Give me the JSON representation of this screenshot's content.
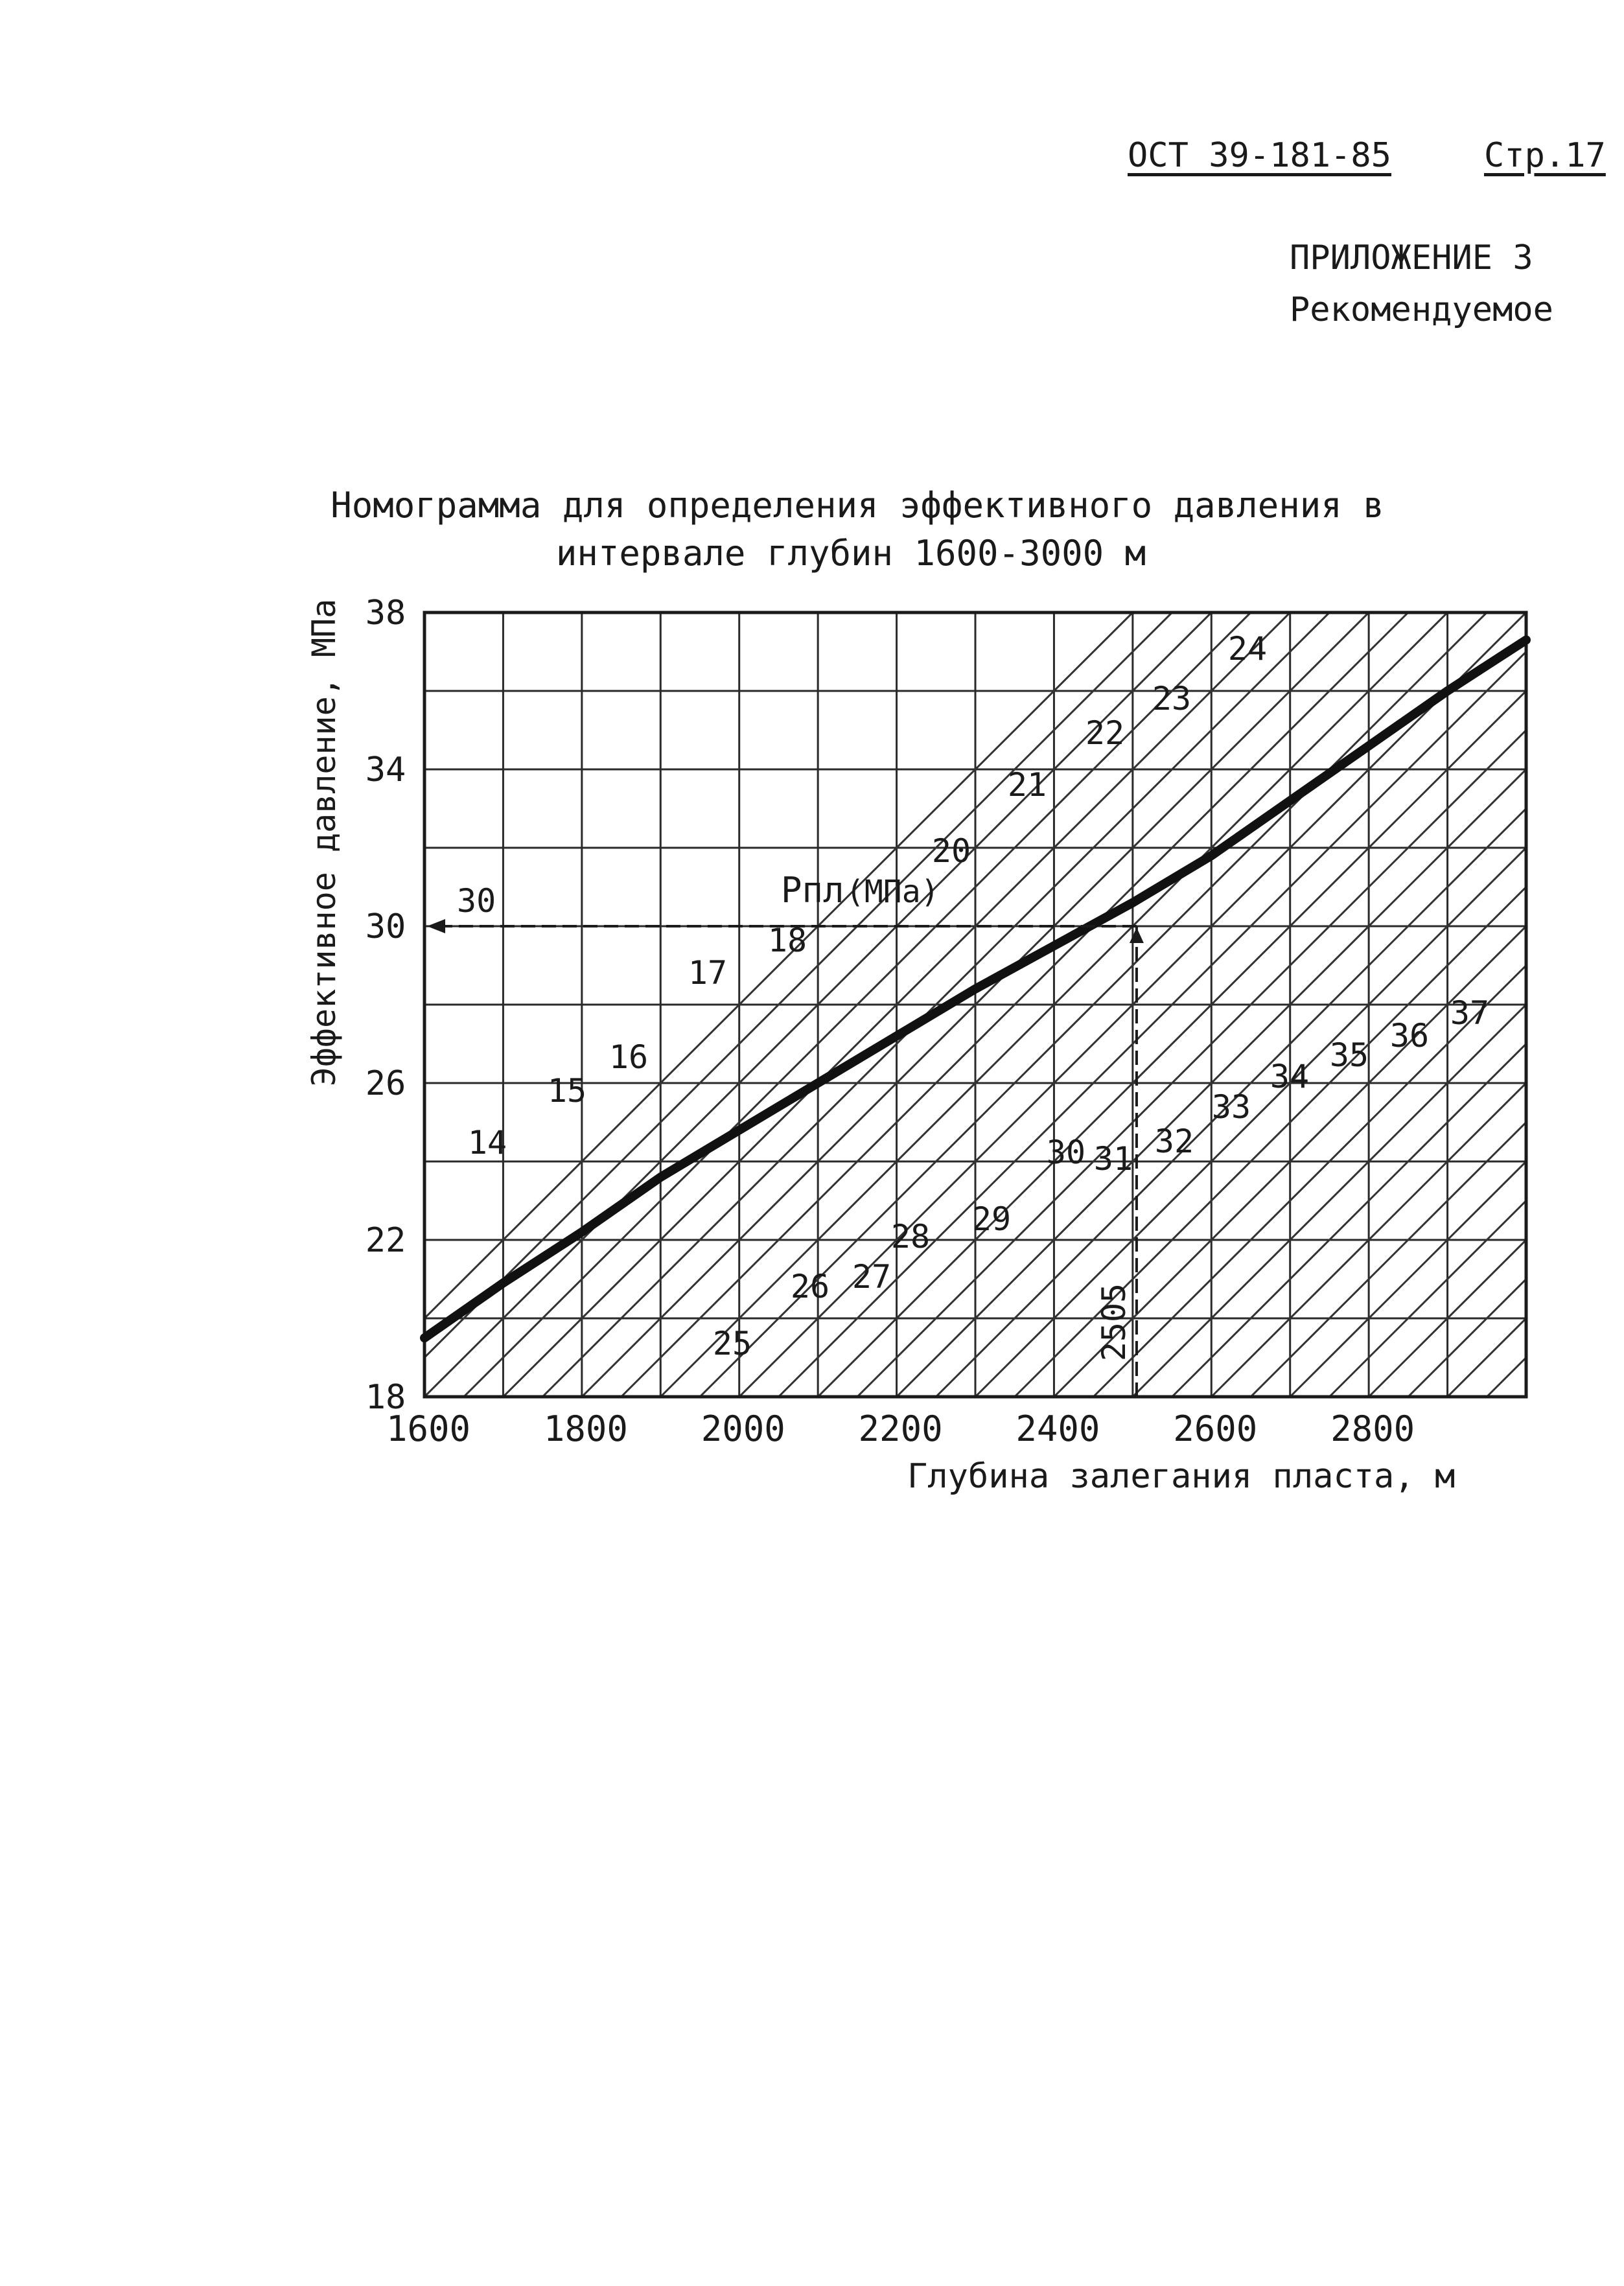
{
  "header": {
    "doc_code": "ОСТ 39-181-85",
    "page": "Стр.17",
    "appendix": "ПРИЛОЖЕНИЕ 3",
    "recommended": "Рекомендуемое"
  },
  "chart_data": {
    "type": "line",
    "title": "Номограмма для определения эффективного давления в интервале глубин 1600-3000 м",
    "title_line1": "Номограмма для определения эффективного давления в",
    "title_line2": "интервале глубин 1600-3000 м",
    "xlabel": "Глубина залегания пласта, м",
    "ylabel": "Эффективное давление, МПа",
    "xlim": [
      1600,
      3000
    ],
    "ylim": [
      18,
      38
    ],
    "x_ticks": [
      1600,
      1800,
      2000,
      2200,
      2400,
      2600,
      2800
    ],
    "x_tick_labels": [
      "1600",
      "1800",
      "2000",
      "2200",
      "2400",
      "2600",
      "2800"
    ],
    "y_ticks": [
      18,
      22,
      26,
      30,
      34,
      38
    ],
    "y_tick_labels": [
      "18",
      "22",
      "26",
      "30",
      "34",
      "38"
    ],
    "grid": true,
    "series": [
      {
        "name": "Pпл (МПа)",
        "x": [
          1600,
          1700,
          1800,
          1900,
          2000,
          2100,
          2200,
          2300,
          2400,
          2500,
          2600,
          2700,
          2800,
          2900,
          3000
        ],
        "y": [
          19.5,
          20.9,
          22.2,
          23.6,
          24.8,
          26.0,
          27.2,
          28.4,
          29.5,
          30.6,
          31.8,
          33.2,
          34.6,
          36.0,
          37.3
        ]
      }
    ],
    "isolines": {
      "values": [
        14,
        15,
        16,
        17,
        18,
        20,
        21,
        22,
        23,
        24,
        25,
        26,
        27,
        28,
        29,
        30,
        31,
        32,
        33,
        34,
        35,
        36,
        37
      ],
      "labels": [
        "14",
        "15",
        "16",
        "17",
        "18",
        "20",
        "21",
        "22",
        "23",
        "24",
        "25",
        "26",
        "27",
        "28",
        "29",
        "30",
        "31",
        "32",
        "33",
        "34",
        "35",
        "36",
        "37"
      ],
      "depth_step_m": 50,
      "slope_mpa_per_m": 0.02
    },
    "series_label": "Pпл",
    "series_label_unit": "(МПа)",
    "example": {
      "depth": 2505,
      "depth_label": "2505",
      "result": 30,
      "result_label": "30"
    }
  }
}
